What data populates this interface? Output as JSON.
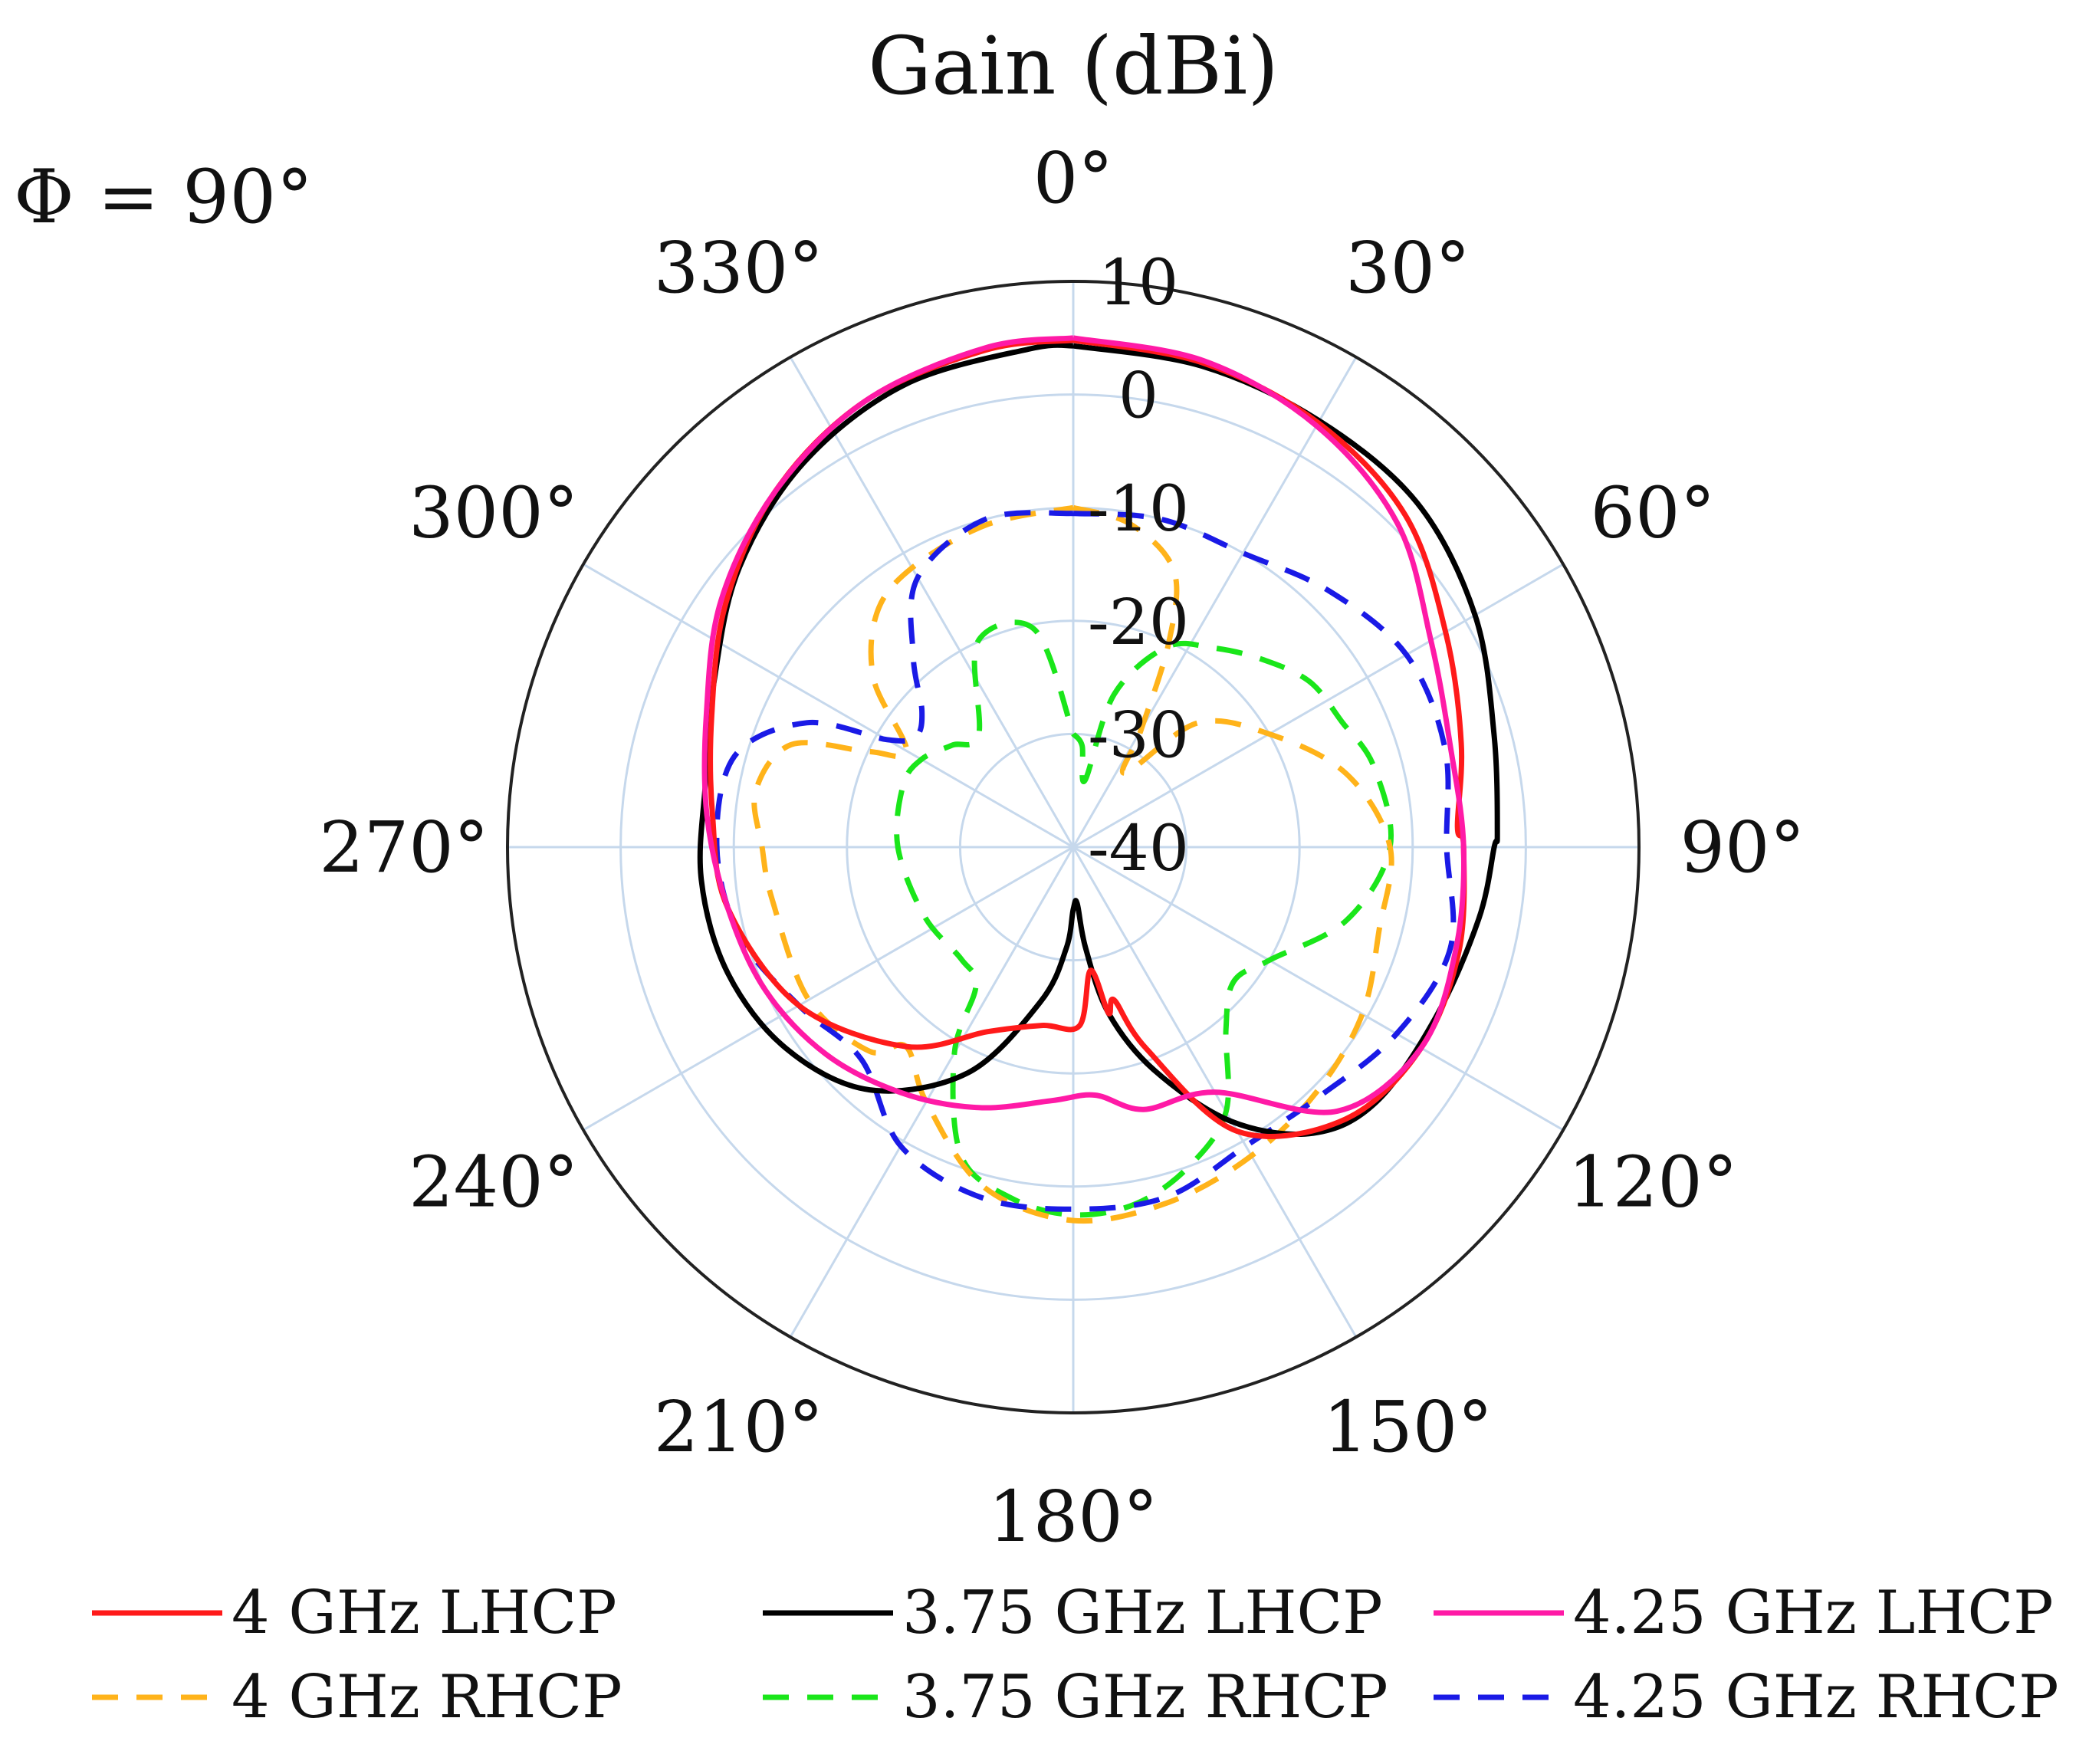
{
  "chart_data": {
    "type": "polar-line",
    "title": "Gain (dBi)",
    "annotation": "Φ = 90°",
    "r_range": [
      -40,
      10
    ],
    "r_ticks": [
      10,
      0,
      -10,
      -20,
      -30,
      -40
    ],
    "r_tick_labels": [
      "10",
      "0",
      "-10",
      "-20",
      "-30",
      "-40"
    ],
    "angle_ticks": [
      0,
      30,
      60,
      90,
      120,
      150,
      180,
      210,
      240,
      270,
      300,
      330
    ],
    "angle_labels": [
      "0°",
      "30°",
      "60°",
      "90°",
      "120°",
      "150°",
      "180°",
      "210°",
      "240°",
      "270°",
      "300°",
      "330°"
    ],
    "angle_direction": "clockwise",
    "zero_location": "top",
    "legend_position": "bottom",
    "series": [
      {
        "name": "4 GHz LHCP",
        "color": "#ff1a1a",
        "dash": "solid",
        "points": [
          [
            0,
            4.8
          ],
          [
            15,
            4.3
          ],
          [
            30,
            3.3
          ],
          [
            45,
            1.5
          ],
          [
            60,
            -2
          ],
          [
            75,
            -4.5
          ],
          [
            87,
            -6
          ],
          [
            90,
            -5.5
          ],
          [
            105,
            -4.7
          ],
          [
            120,
            -4.5
          ],
          [
            135,
            -6
          ],
          [
            150,
            -11
          ],
          [
            160,
            -21
          ],
          [
            165,
            -26
          ],
          [
            168,
            -25
          ],
          [
            172,
            -29
          ],
          [
            178,
            -24.2
          ],
          [
            190,
            -24
          ],
          [
            205,
            -22
          ],
          [
            220,
            -17
          ],
          [
            240,
            -12
          ],
          [
            260,
            -9
          ],
          [
            275,
            -8
          ],
          [
            290,
            -6
          ],
          [
            305,
            -2.5
          ],
          [
            320,
            1
          ],
          [
            335,
            3.5
          ],
          [
            350,
            4.6
          ],
          [
            360,
            4.8
          ]
        ]
      },
      {
        "name": "4.25 GHz LHCP",
        "color": "#ff1aa6",
        "dash": "solid",
        "points": [
          [
            0,
            5
          ],
          [
            15,
            4.5
          ],
          [
            30,
            3
          ],
          [
            45,
            0.5
          ],
          [
            60,
            -3.5
          ],
          [
            75,
            -5.5
          ],
          [
            90,
            -5.5
          ],
          [
            105,
            -5
          ],
          [
            120,
            -4.5
          ],
          [
            135,
            -7
          ],
          [
            150,
            -15
          ],
          [
            165,
            -16
          ],
          [
            175,
            -18
          ],
          [
            185,
            -17.5
          ],
          [
            200,
            -15.5
          ],
          [
            215,
            -13.5
          ],
          [
            230,
            -11.5
          ],
          [
            245,
            -10
          ],
          [
            260,
            -9
          ],
          [
            275,
            -7.5
          ],
          [
            290,
            -5.5
          ],
          [
            305,
            -2
          ],
          [
            320,
            1
          ],
          [
            335,
            3.5
          ],
          [
            350,
            4.8
          ],
          [
            360,
            5
          ]
        ]
      },
      {
        "name": "3.75 GHz LHCP",
        "color": "#000000",
        "dash": "solid",
        "points": [
          [
            0,
            4.3
          ],
          [
            15,
            4
          ],
          [
            30,
            3.5
          ],
          [
            45,
            3
          ],
          [
            60,
            1
          ],
          [
            75,
            -1.5
          ],
          [
            88,
            -2.5
          ],
          [
            90,
            -2.8
          ],
          [
            100,
            -3.6
          ],
          [
            115,
            -4.6
          ],
          [
            130,
            -5
          ],
          [
            140,
            -7
          ],
          [
            150,
            -12
          ],
          [
            160,
            -19
          ],
          [
            168,
            -25
          ],
          [
            173,
            -31
          ],
          [
            176,
            -35
          ],
          [
            180,
            -34.5
          ],
          [
            184,
            -31
          ],
          [
            192,
            -26
          ],
          [
            205,
            -18
          ],
          [
            220,
            -12
          ],
          [
            235,
            -9
          ],
          [
            250,
            -7.5
          ],
          [
            265,
            -7
          ],
          [
            280,
            -7
          ],
          [
            295,
            -5
          ],
          [
            310,
            -1.5
          ],
          [
            325,
            1.5
          ],
          [
            340,
            3.5
          ],
          [
            355,
            4.2
          ],
          [
            360,
            4.3
          ]
        ]
      },
      {
        "name": "3.75 GHz RHCP",
        "color": "#1ae61a",
        "dash": "dashed",
        "points": [
          [
            0,
            -30
          ],
          [
            5,
            -31
          ],
          [
            10,
            -34
          ],
          [
            15,
            -26
          ],
          [
            25,
            -20.5
          ],
          [
            35,
            -18.5
          ],
          [
            45,
            -16.5
          ],
          [
            55,
            -14.5
          ],
          [
            65,
            -13.8
          ],
          [
            75,
            -12.5
          ],
          [
            90,
            -12
          ],
          [
            105,
            -15
          ],
          [
            120,
            -20
          ],
          [
            130,
            -21.5
          ],
          [
            140,
            -19
          ],
          [
            150,
            -13
          ],
          [
            160,
            -10
          ],
          [
            170,
            -8
          ],
          [
            180,
            -7.5
          ],
          [
            190,
            -8.5
          ],
          [
            200,
            -11
          ],
          [
            210,
            -19
          ],
          [
            215,
            -25
          ],
          [
            225,
            -26
          ],
          [
            245,
            -25.5
          ],
          [
            270,
            -24.5
          ],
          [
            290,
            -24
          ],
          [
            300,
            -24.5
          ],
          [
            310,
            -26
          ],
          [
            320,
            -27
          ],
          [
            335,
            -20
          ],
          [
            350,
            -20.5
          ],
          [
            360,
            -30
          ]
        ]
      },
      {
        "name": "4 GHz RHCP",
        "color": "#ffb31a",
        "dash": "dashed",
        "points": [
          [
            0,
            -10
          ],
          [
            10,
            -11
          ],
          [
            20,
            -14
          ],
          [
            25,
            -20
          ],
          [
            30,
            -28
          ],
          [
            35,
            -32
          ],
          [
            45,
            -24.5
          ],
          [
            60,
            -20
          ],
          [
            75,
            -15
          ],
          [
            90,
            -12
          ],
          [
            105,
            -12
          ],
          [
            120,
            -10.5
          ],
          [
            135,
            -9.5
          ],
          [
            150,
            -8.5
          ],
          [
            165,
            -7.5
          ],
          [
            180,
            -7
          ],
          [
            195,
            -9
          ],
          [
            210,
            -14
          ],
          [
            220,
            -17
          ],
          [
            225,
            -14.5
          ],
          [
            240,
            -13
          ],
          [
            260,
            -13
          ],
          [
            270,
            -12.5
          ],
          [
            280,
            -11.5
          ],
          [
            290,
            -13.5
          ],
          [
            295,
            -20
          ],
          [
            300,
            -23
          ],
          [
            310,
            -17
          ],
          [
            320,
            -13
          ],
          [
            330,
            -11.5
          ],
          [
            345,
            -10.5
          ],
          [
            360,
            -10
          ]
        ]
      },
      {
        "name": "4.25 GHz RHCP",
        "color": "#1a1ae6",
        "dash": "dashed",
        "points": [
          [
            0,
            -10.5
          ],
          [
            15,
            -10
          ],
          [
            30,
            -10
          ],
          [
            45,
            -8
          ],
          [
            60,
            -6
          ],
          [
            75,
            -6
          ],
          [
            90,
            -7
          ],
          [
            105,
            -5.5
          ],
          [
            120,
            -7
          ],
          [
            135,
            -9
          ],
          [
            150,
            -9.5
          ],
          [
            165,
            -8
          ],
          [
            180,
            -8
          ],
          [
            195,
            -8
          ],
          [
            210,
            -9.5
          ],
          [
            225,
            -13.5
          ],
          [
            240,
            -12
          ],
          [
            255,
            -9.5
          ],
          [
            270,
            -8.5
          ],
          [
            285,
            -9
          ],
          [
            295,
            -14
          ],
          [
            300,
            -21
          ],
          [
            305,
            -23
          ],
          [
            312,
            -22
          ],
          [
            320,
            -18
          ],
          [
            330,
            -12.5
          ],
          [
            345,
            -10
          ],
          [
            360,
            -10.5
          ]
        ]
      }
    ]
  }
}
